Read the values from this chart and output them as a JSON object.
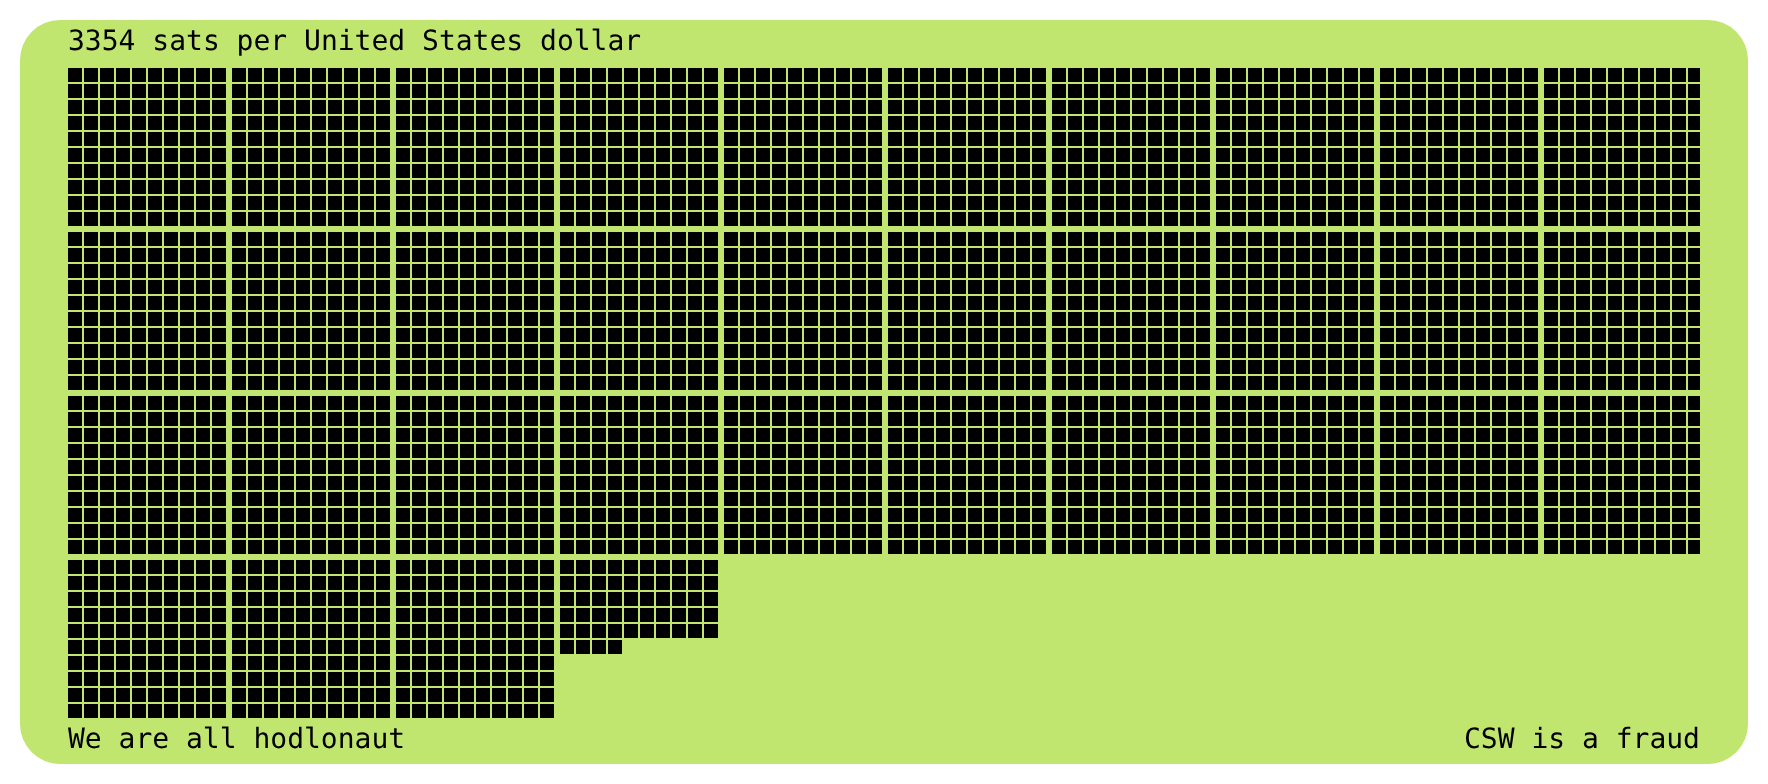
{
  "chart_data": {
    "type": "other",
    "title": "sats per United States dollar",
    "values": [
      3354
    ],
    "value_labels": [
      "3354"
    ],
    "color": "#000000",
    "annotations": [
      "We are all hodlonaut",
      "CSW is a fraud"
    ]
  }
}
